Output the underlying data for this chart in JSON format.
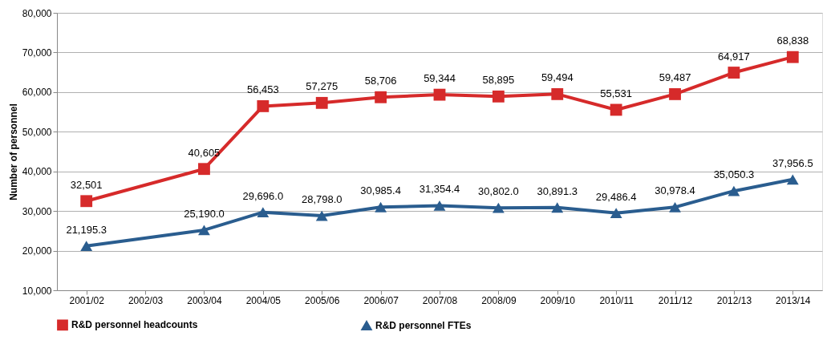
{
  "chart_data": {
    "type": "line",
    "ylabel": "Number of personnel",
    "categories": [
      "2001/02",
      "2002/03",
      "2003/04",
      "2004/05",
      "2005/06",
      "2006/07",
      "2007/08",
      "2008/09",
      "2009/10",
      "2010/11",
      "2011/12",
      "2012/13",
      "2013/14"
    ],
    "series": [
      {
        "name": "R&D personnel headcounts",
        "color": "#d62a2a",
        "marker": "square",
        "values": [
          32501,
          null,
          40605,
          56453,
          57275,
          58706,
          59344,
          58895,
          59494,
          55531,
          59487,
          64917,
          68838
        ],
        "value_labels": [
          "32,501",
          null,
          "40,605",
          "56,453",
          "57,275",
          "58,706",
          "59,344",
          "58,895",
          "59,494",
          "55,531",
          "59,487",
          "64,917",
          "68,838"
        ]
      },
      {
        "name": "R&D personnel FTEs",
        "color": "#2a5d8f",
        "marker": "triangle",
        "values": [
          21195.3,
          null,
          25190.0,
          29696.0,
          28798.0,
          30985.4,
          31354.4,
          30802.0,
          30891.3,
          29486.4,
          30978.4,
          35050.3,
          37956.5
        ],
        "value_labels": [
          "21,195.3",
          null,
          "25,190.0",
          "29,696.0",
          "28,798.0",
          "30,985.4",
          "31,354.4",
          "30,802.0",
          "30,891.3",
          "29,486.4",
          "30,978.4",
          "35,050.3",
          "37,956.5"
        ]
      }
    ],
    "ylim": [
      10000,
      80000
    ],
    "yticks": [
      {
        "value": 10000,
        "label": "10,000"
      },
      {
        "value": 20000,
        "label": "20,000"
      },
      {
        "value": 30000,
        "label": "30,000"
      },
      {
        "value": 40000,
        "label": "40,000"
      },
      {
        "value": 50000,
        "label": "50,000"
      },
      {
        "value": 60000,
        "label": "60,000"
      },
      {
        "value": 70000,
        "label": "70,000"
      },
      {
        "value": 80000,
        "label": "80,000"
      }
    ],
    "grid": "y",
    "legend": "bottom",
    "line_style": "solid"
  }
}
